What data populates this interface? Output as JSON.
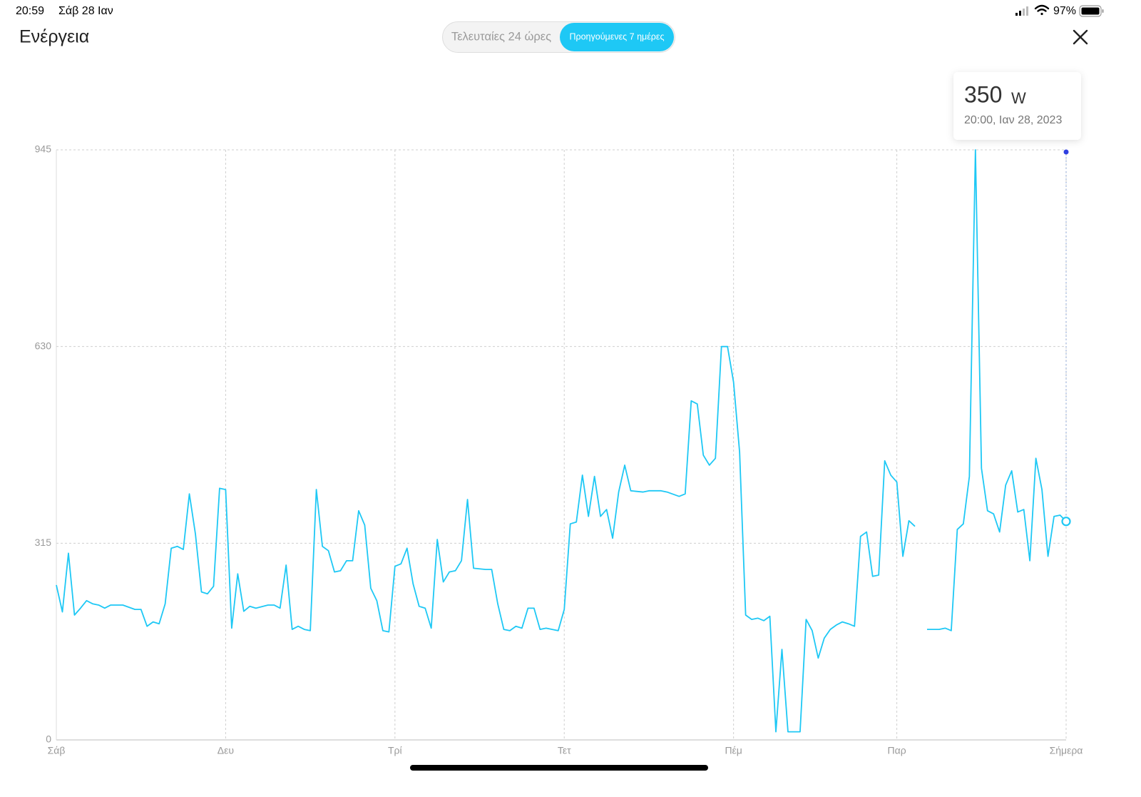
{
  "status_bar": {
    "time": "20:59",
    "date": "Σάβ 28 Ιαν",
    "battery": "97%"
  },
  "header": {
    "title": "Ενέργεια",
    "tabs": [
      "Τελευταίες 24 ώρες",
      "Προηγούμενες 7 ημέρες"
    ]
  },
  "tooltip": {
    "value": 350,
    "unit": "W",
    "timestamp": "20:00, Ιαν 28, 2023"
  },
  "chart_data": {
    "type": "line",
    "x": [
      0,
      1,
      2,
      3,
      4,
      5,
      6,
      7,
      8,
      9,
      11,
      13,
      14,
      15,
      16,
      17,
      18,
      19,
      20,
      21,
      22,
      23,
      24,
      25,
      26,
      27,
      28,
      29,
      30,
      31,
      32,
      33,
      35,
      36,
      37,
      38,
      39,
      40,
      41,
      42,
      43,
      44,
      45,
      46,
      47,
      48,
      49,
      50,
      51,
      52,
      53,
      54,
      55,
      56,
      57,
      58,
      59,
      60,
      61,
      62,
      63,
      64,
      65,
      66,
      67,
      68,
      69,
      71,
      72,
      73,
      74,
      75,
      76,
      77,
      78,
      79,
      80,
      81,
      82,
      83,
      84,
      85,
      86,
      87,
      88,
      89,
      90,
      91,
      92,
      93,
      94,
      95,
      97,
      98,
      100,
      101,
      103,
      104,
      105,
      106,
      107,
      108,
      109,
      110,
      111,
      112,
      113,
      114,
      115,
      116,
      117,
      118,
      119,
      120,
      121,
      123,
      124,
      125,
      126,
      127,
      128,
      129,
      130,
      131,
      132,
      133,
      134,
      135,
      136,
      137,
      138,
      139,
      140,
      141,
      142,
      143,
      144,
      145,
      146,
      147,
      148,
      149,
      150,
      151,
      152,
      153,
      154,
      155,
      156,
      157,
      158,
      159,
      160,
      161,
      162,
      163,
      164,
      165,
      166,
      167
    ],
    "values": [
      248,
      205,
      299,
      200,
      211,
      223,
      218,
      216,
      211,
      216,
      216,
      209,
      209,
      182,
      189,
      186,
      218,
      307,
      310,
      305,
      394,
      330,
      237,
      234,
      246,
      403,
      401,
      179,
      266,
      206,
      214,
      211,
      216,
      216,
      211,
      280,
      177,
      182,
      177,
      175,
      401,
      310,
      303,
      269,
      271,
      287,
      287,
      367,
      344,
      243,
      223,
      175,
      173,
      278,
      282,
      307,
      250,
      214,
      211,
      179,
      321,
      253,
      269,
      271,
      287,
      385,
      275,
      273,
      273,
      218,
      177,
      175,
      182,
      179,
      211,
      211,
      177,
      179,
      177,
      175,
      209,
      346,
      349,
      424,
      358,
      422,
      358,
      369,
      323,
      397,
      440,
      399,
      397,
      399,
      399,
      397,
      390,
      394,
      543,
      538,
      456,
      440,
      451,
      630,
      630,
      573,
      461,
      200,
      193,
      195,
      191,
      198,
      13,
      145,
      13,
      13,
      193,
      175,
      131,
      163,
      177,
      184,
      189,
      186,
      182,
      326,
      333,
      262,
      264,
      447,
      424,
      413,
      294,
      351,
      342,
      null,
      177,
      177,
      177,
      179,
      175,
      337,
      346,
      422,
      945,
      435,
      367,
      362,
      333,
      408,
      431,
      365,
      369,
      287,
      451,
      401,
      294,
      358,
      360,
      350
    ],
    "color": "#1ec8f5",
    "xlim": [
      0,
      167
    ],
    "xticks": [
      {
        "value": 0,
        "label": "Σάβ"
      },
      {
        "value": 28,
        "label": "Δευ"
      },
      {
        "value": 56,
        "label": "Τρί"
      },
      {
        "value": 84,
        "label": "Τετ"
      },
      {
        "value": 112,
        "label": "Πέμ"
      },
      {
        "value": 139,
        "label": "Παρ"
      },
      {
        "value": 167,
        "label": "Σήμερα"
      }
    ],
    "ylim": [
      0,
      945
    ],
    "yticks": [
      0,
      315,
      630,
      945
    ],
    "grid": true
  }
}
